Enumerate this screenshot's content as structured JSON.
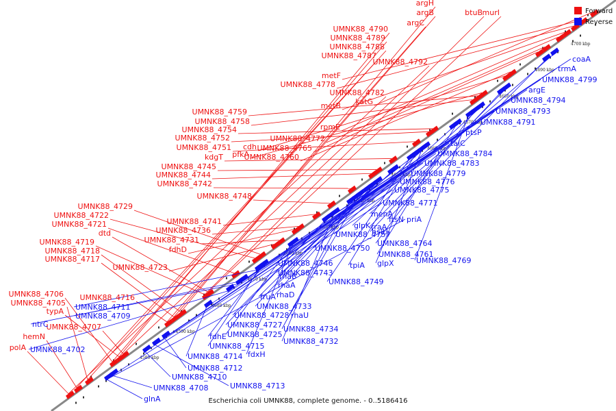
{
  "caption": "Escherichia coli UMNK88, complete genome. - 0..5186416",
  "legend": [
    {
      "label": "Forward",
      "color": "#ee1111"
    },
    {
      "label": "Reverse",
      "color": "#1111ee"
    }
  ],
  "colors": {
    "forward": "#ee1111",
    "reverse": "#1111ee",
    "axis": "#888888"
  },
  "ticks": [
    "4580 kbp",
    "4590 kbp",
    "4600 kbp",
    "4610 kbp",
    "4620 kbp",
    "4630 kbp",
    "4640 kbp",
    "4650 kbp",
    "4660 kbp",
    "4670 kbp",
    "4680 kbp",
    "4690 kbp",
    "4700 kbp"
  ],
  "forward_labels": [
    "polA",
    "hemN",
    "UMNK88_4705",
    "UMNK88_4706",
    "typA",
    "UMNK88_4707",
    "UMNK88_4716",
    "UMNK88_4717",
    "UMNK88_4718",
    "UMNK88_4719",
    "dtd",
    "UMNK88_4721",
    "UMNK88_4722",
    "UMNK88_4729",
    "UMNK88_4723",
    "UMNK88_4731",
    "fdhD",
    "UMNK88_4736",
    "UMNK88_4741",
    "UMNK88_4748",
    "UMNK88_4742",
    "UMNK88_4744",
    "UMNK88_4745",
    "kdgT",
    "UMNK88_4751",
    "UMNK88_4752",
    "UMNK88_4754",
    "UMNK88_4758",
    "UMNK88_4759",
    "pfkA",
    "cdh",
    "UMNK88_4760",
    "UMNK88_4765",
    "UMNK88_4772",
    "rpmE",
    "metB",
    "UMNK88_4778",
    "metF",
    "katG",
    "UMNK88_4782",
    "UMNK88_4787",
    "UMNK88_4788",
    "UMNK88_4789",
    "UMNK88_4790",
    "UMNK88_4792",
    "argC",
    "argB",
    "argH",
    "btuB",
    "murI"
  ],
  "reverse_labels": [
    "glnA",
    "UMNK88_4708",
    "UMNK88_4710",
    "UMNK88_4713",
    "UMNK88_4712",
    "UMNK88_4714",
    "UMNK88_4702",
    "ntrC",
    "UMNK88_4709",
    "UMNK88_4711",
    "UMNK88_4715",
    "fdhE",
    "UMNK88_4725",
    "fdxH",
    "UMNK88_4727",
    "UMNK88_4728",
    "UMNK88_4732",
    "UMNK88_4734",
    "UMNK88_4733",
    "rhaU",
    "fruA",
    "rhaD",
    "rhaA",
    "rhaB",
    "UMNK88_4743",
    "UMNK88_4749",
    "UMNK88_4746",
    "tpiA",
    "glpX",
    "UMNK88_4750",
    "UMNK88_4757",
    "UMNK88_4761",
    "UMNK88_4769",
    "UMNK88_4764",
    "glpK",
    "hslU",
    "rraA",
    "ftsN",
    "menA",
    "priA",
    "UMNK88_4771",
    "UMNK88_4775",
    "UMNK88_4776",
    "UMNK88_4779",
    "UMNK88_4783",
    "UMNK88_4784",
    "talC",
    "ptsP",
    "UMNK88_4791",
    "UMNK88_4793",
    "UMNK88_4794",
    "argE",
    "UMNK88_4799",
    "trmA",
    "coaA"
  ]
}
